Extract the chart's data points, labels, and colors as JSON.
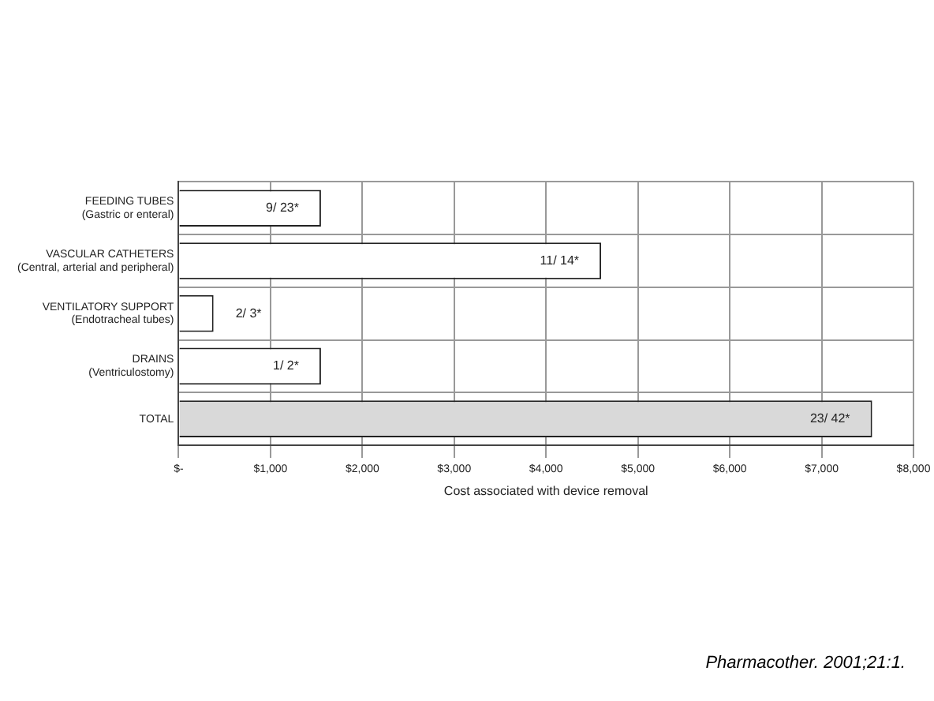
{
  "chart_data": {
    "type": "bar",
    "orientation": "horizontal",
    "xlabel": "Cost associated with device removal",
    "categories": [
      "FEEDING TUBES\n(Gastric or enteral)",
      "VASCULAR CATHETERS\n(Central, arterial and peripheral)",
      "VENTILATORY SUPPORT\n(Endotracheal tubes)",
      "DRAINS\n(Ventriculostomy)",
      "TOTAL"
    ],
    "values": [
      1550,
      4600,
      380,
      1550,
      7550
    ],
    "colors": [
      "#ffffff",
      "#ffffff",
      "#ffffff",
      "#ffffff",
      "#d9d9d9"
    ],
    "value_labels": [
      "9/ 23*",
      "11/ 14*",
      "2/ 3*",
      "1/ 2*",
      "23/ 42*"
    ],
    "xlim": [
      0,
      8000
    ],
    "xticks": [
      {
        "value": 0,
        "label": "$-"
      },
      {
        "value": 1000,
        "label": "$1,000"
      },
      {
        "value": 2000,
        "label": "$2,000"
      },
      {
        "value": 3000,
        "label": "$3,000"
      },
      {
        "value": 4000,
        "label": "$4,000"
      },
      {
        "value": 5000,
        "label": "$5,000"
      },
      {
        "value": 6000,
        "label": "$6,000"
      },
      {
        "value": 7000,
        "label": "$7,000"
      },
      {
        "value": 8000,
        "label": "$8,000"
      }
    ],
    "grid": true,
    "legend": false,
    "annotations": [
      "Pharmacother. 2001;21:1."
    ]
  }
}
